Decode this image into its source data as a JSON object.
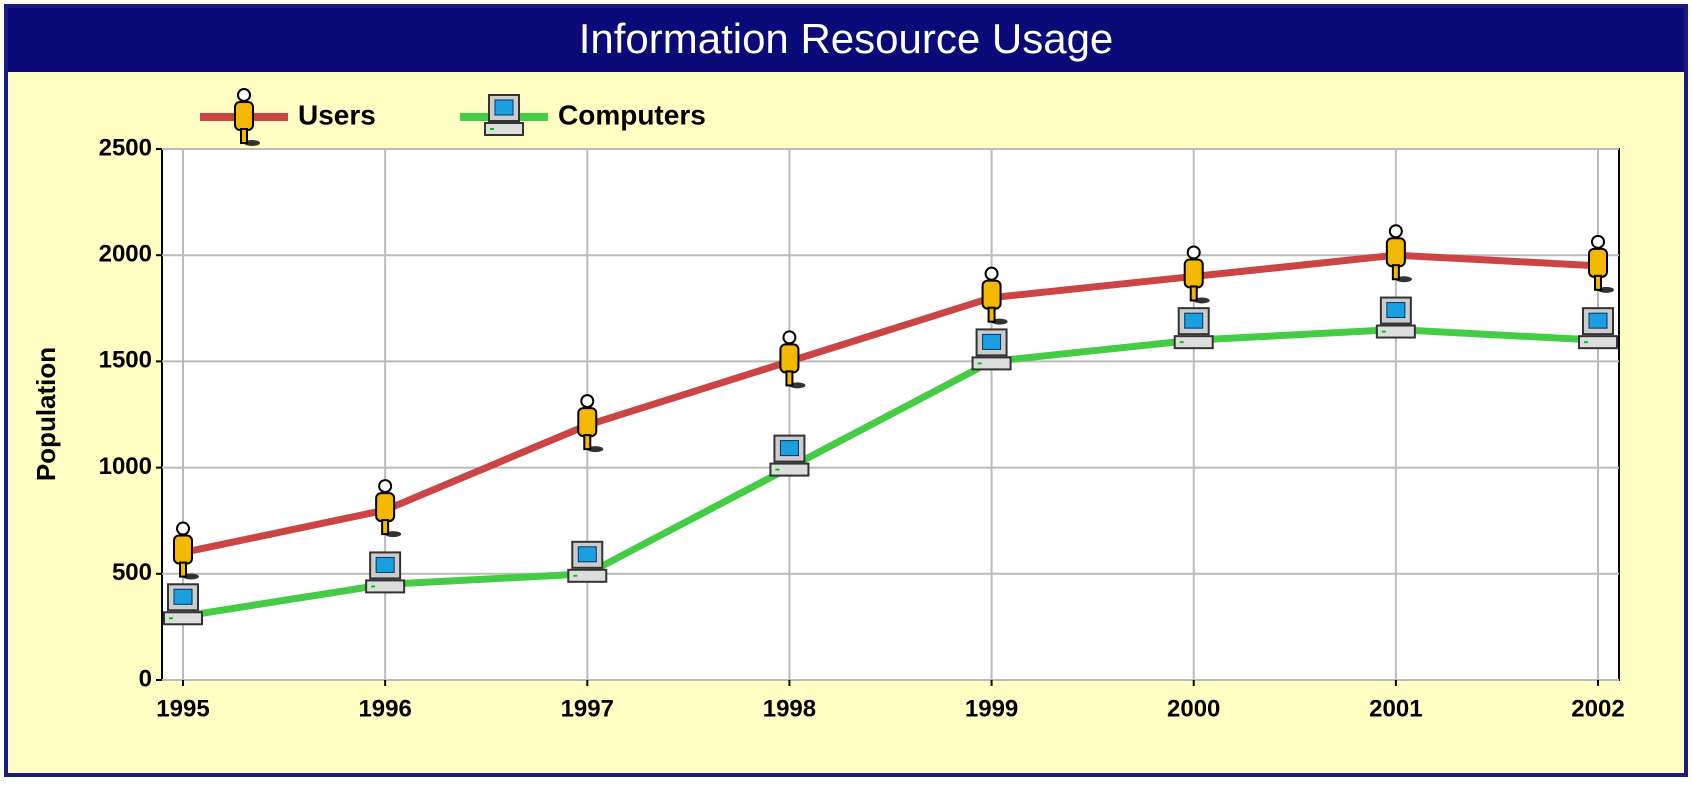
{
  "chart_data": {
    "type": "line",
    "title": "Information Resource Usage",
    "ylabel": "Population",
    "categories": [
      "1995",
      "1996",
      "1997",
      "1998",
      "1999",
      "2000",
      "2001",
      "2002"
    ],
    "series": [
      {
        "name": "Users",
        "color": "#cc4444",
        "values": [
          600,
          800,
          1200,
          1500,
          1800,
          1900,
          2000,
          1950
        ]
      },
      {
        "name": "Computers",
        "color": "#44cc44",
        "values": [
          300,
          450,
          500,
          1000,
          1500,
          1600,
          1650,
          1600
        ]
      }
    ],
    "ylim": [
      0,
      2500
    ],
    "yticks": [
      0,
      500,
      1000,
      1500,
      2000,
      2500
    ],
    "grid": true,
    "legend": "top-left"
  }
}
